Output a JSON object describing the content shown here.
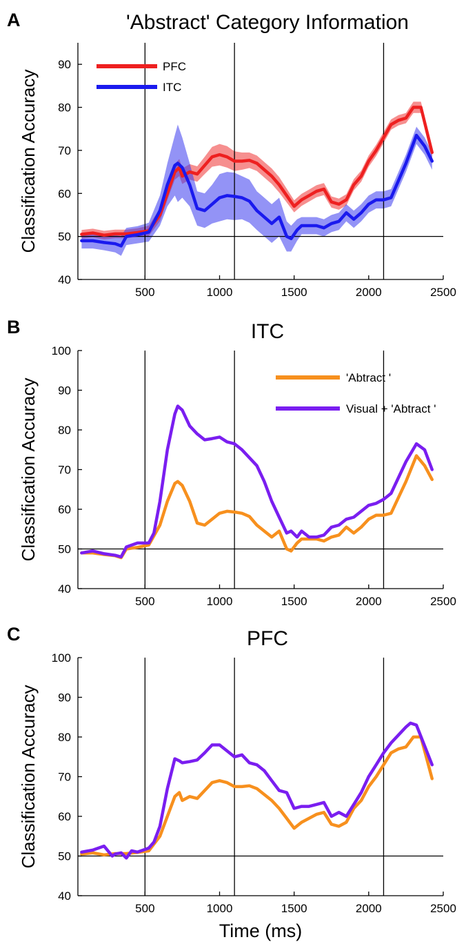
{
  "x_axis_label": "Time (ms)",
  "chart_data": [
    {
      "panel_label": "A",
      "type": "line",
      "title": "'Abstract' Category Information",
      "ylabel": "Classification Accuracy",
      "xlabel": "",
      "xlim": [
        50,
        2500
      ],
      "ylim": [
        40,
        95
      ],
      "xticks": [
        500,
        1000,
        1500,
        2000,
        2500
      ],
      "yticks": [
        40,
        50,
        60,
        70,
        80,
        90
      ],
      "reference_y": 50,
      "event_lines_x": [
        500,
        1100,
        2100
      ],
      "legend_position": "top-left",
      "grid": false,
      "series": [
        {
          "name": "PFC",
          "color": "#ee2020",
          "band_color": "#ee3333",
          "x": [
            75,
            150,
            225,
            300,
            375,
            450,
            525,
            600,
            650,
            700,
            730,
            750,
            800,
            850,
            900,
            950,
            1000,
            1050,
            1100,
            1150,
            1200,
            1250,
            1300,
            1350,
            1400,
            1450,
            1500,
            1550,
            1600,
            1650,
            1700,
            1750,
            1800,
            1850,
            1900,
            1950,
            2000,
            2050,
            2100,
            2150,
            2200,
            2250,
            2300,
            2350,
            2425
          ],
          "y": [
            50.5,
            50.8,
            50.3,
            50.6,
            50.6,
            50.9,
            51.3,
            55,
            60,
            65,
            66,
            64,
            65,
            64.5,
            66.5,
            68.5,
            69,
            68.5,
            67.5,
            67.5,
            67.7,
            67,
            65.5,
            64,
            62,
            59.5,
            57,
            58.5,
            59.5,
            60.5,
            61,
            58,
            57.5,
            58.5,
            62,
            64,
            67.5,
            70,
            73,
            76,
            77,
            77.5,
            80,
            80,
            69.5
          ],
          "band": [
            1,
            1,
            1,
            1,
            1,
            1,
            1.2,
            1.5,
            1.5,
            1.8,
            2,
            1.8,
            1.8,
            1.8,
            2,
            2.3,
            2.5,
            2.5,
            2.3,
            2,
            1.8,
            1.8,
            1.8,
            1.8,
            1.8,
            1.6,
            1.4,
            1.4,
            1.4,
            1.4,
            1.4,
            1.3,
            1.3,
            1.3,
            1.3,
            1.3,
            1.3,
            1.3,
            1.3,
            1.2,
            1.2,
            1.2,
            1.3,
            1.3,
            1.3
          ]
        },
        {
          "name": "ITC",
          "color": "#1a1aee",
          "band_color": "#3a3aee",
          "x": [
            75,
            150,
            225,
            300,
            340,
            375,
            450,
            525,
            600,
            650,
            700,
            720,
            750,
            800,
            850,
            900,
            950,
            1000,
            1050,
            1100,
            1150,
            1200,
            1250,
            1300,
            1350,
            1400,
            1450,
            1480,
            1520,
            1550,
            1600,
            1650,
            1700,
            1750,
            1800,
            1850,
            1900,
            1950,
            2000,
            2050,
            2100,
            2150,
            2200,
            2250,
            2320,
            2375,
            2425
          ],
          "y": [
            49,
            49,
            48.6,
            48.3,
            47.8,
            50,
            50.4,
            51,
            56,
            62,
            66.5,
            67,
            66,
            62,
            56.5,
            56,
            57.5,
            59,
            59.5,
            59.3,
            59,
            58.2,
            56,
            54.5,
            53,
            54.5,
            50,
            49.5,
            51.5,
            52.5,
            52.5,
            52.5,
            52,
            53,
            53.5,
            55.5,
            54,
            55.5,
            57.5,
            58.5,
            58.5,
            59,
            63,
            67,
            73.5,
            71,
            67.5
          ],
          "band": [
            1.8,
            1.8,
            1.8,
            2,
            2.3,
            2,
            2,
            2.2,
            3.5,
            5,
            7,
            9,
            7,
            5,
            4,
            4,
            4.5,
            5.5,
            5.5,
            5.5,
            5,
            5,
            4.5,
            4.5,
            4.5,
            4.5,
            3.5,
            3,
            2.5,
            2,
            2,
            2,
            2,
            2,
            2,
            2,
            2,
            2,
            2,
            2,
            2,
            2,
            2,
            2,
            2,
            2,
            2
          ]
        }
      ]
    },
    {
      "panel_label": "B",
      "type": "line",
      "title": "ITC",
      "ylabel": "Classification Accuracy",
      "xlabel": "",
      "xlim": [
        50,
        2500
      ],
      "ylim": [
        40,
        100
      ],
      "xticks": [
        500,
        1000,
        1500,
        2000,
        2500
      ],
      "yticks": [
        40,
        50,
        60,
        70,
        80,
        90,
        100
      ],
      "reference_y": 50,
      "event_lines_x": [
        500,
        1100,
        2100
      ],
      "legend_position": "top-right",
      "grid": false,
      "series": [
        {
          "name": "'Abtract '",
          "color": "#f7901e",
          "x": [
            75,
            150,
            225,
            300,
            340,
            375,
            450,
            525,
            600,
            650,
            700,
            720,
            750,
            800,
            850,
            900,
            950,
            1000,
            1050,
            1100,
            1150,
            1200,
            1250,
            1300,
            1350,
            1400,
            1450,
            1480,
            1520,
            1550,
            1600,
            1650,
            1700,
            1750,
            1800,
            1850,
            1900,
            1950,
            2000,
            2050,
            2100,
            2150,
            2200,
            2250,
            2320,
            2375,
            2425
          ],
          "y": [
            49,
            49,
            48.6,
            48.3,
            47.8,
            50,
            50.4,
            51,
            56,
            62,
            66.5,
            67,
            66,
            62,
            56.5,
            56,
            57.5,
            59,
            59.5,
            59.3,
            59,
            58.2,
            56,
            54.5,
            53,
            54.5,
            50,
            49.5,
            51.5,
            52.5,
            52.5,
            52.5,
            52,
            53,
            53.5,
            55.5,
            54,
            55.5,
            57.5,
            58.5,
            58.5,
            59,
            63,
            67,
            73.5,
            71,
            67.5
          ]
        },
        {
          "name": "Visual + 'Abtract '",
          "color": "#7a1ef0",
          "x": [
            75,
            150,
            225,
            300,
            340,
            375,
            450,
            525,
            560,
            600,
            650,
            700,
            720,
            750,
            800,
            850,
            900,
            950,
            1000,
            1050,
            1100,
            1150,
            1200,
            1250,
            1300,
            1350,
            1400,
            1450,
            1480,
            1520,
            1550,
            1600,
            1650,
            1700,
            1750,
            1800,
            1850,
            1900,
            1950,
            2000,
            2050,
            2100,
            2150,
            2200,
            2250,
            2320,
            2375,
            2425
          ],
          "y": [
            49,
            49.5,
            48.8,
            48.4,
            48,
            50.5,
            51.5,
            51.5,
            54,
            62,
            75,
            84,
            86,
            85,
            81,
            79,
            77.5,
            77.8,
            78.2,
            77,
            76.5,
            75,
            73,
            71,
            67,
            62,
            58,
            54,
            54.5,
            53,
            54.5,
            53,
            53,
            53.5,
            55.5,
            56,
            57.5,
            58,
            59.5,
            61,
            61.5,
            62.5,
            64,
            68,
            72,
            76.5,
            75,
            70
          ]
        }
      ]
    },
    {
      "panel_label": "C",
      "type": "line",
      "title": "PFC",
      "ylabel": "Classification Accuracy",
      "xlabel": "Time (ms)",
      "xlim": [
        50,
        2500
      ],
      "ylim": [
        40,
        100
      ],
      "xticks": [
        500,
        1000,
        1500,
        2000,
        2500
      ],
      "yticks": [
        40,
        50,
        60,
        70,
        80,
        90,
        100
      ],
      "reference_y": 50,
      "event_lines_x": [
        500,
        1100,
        2100
      ],
      "legend_position": "none",
      "grid": false,
      "series": [
        {
          "color": "#f7901e",
          "x": [
            75,
            150,
            225,
            300,
            375,
            450,
            525,
            600,
            650,
            700,
            730,
            750,
            800,
            850,
            900,
            950,
            1000,
            1050,
            1100,
            1150,
            1200,
            1250,
            1300,
            1350,
            1400,
            1450,
            1500,
            1550,
            1600,
            1650,
            1700,
            1750,
            1800,
            1850,
            1900,
            1950,
            2000,
            2050,
            2100,
            2150,
            2200,
            2250,
            2300,
            2350,
            2425
          ],
          "y": [
            50.5,
            50.8,
            50.3,
            50.6,
            50.6,
            50.9,
            51.3,
            55,
            60,
            65,
            66,
            64,
            65,
            64.5,
            66.5,
            68.5,
            69,
            68.5,
            67.5,
            67.5,
            67.7,
            67,
            65.5,
            64,
            62,
            59.5,
            57,
            58.5,
            59.5,
            60.5,
            61,
            58,
            57.5,
            58.5,
            62,
            64,
            67.5,
            70,
            73,
            76,
            77,
            77.5,
            80,
            80,
            69.5
          ]
        },
        {
          "color": "#7a1ef0",
          "x": [
            75,
            150,
            225,
            280,
            300,
            340,
            375,
            410,
            450,
            525,
            560,
            600,
            650,
            700,
            730,
            750,
            800,
            850,
            900,
            950,
            1000,
            1050,
            1100,
            1150,
            1200,
            1250,
            1300,
            1350,
            1400,
            1450,
            1500,
            1550,
            1600,
            1650,
            1700,
            1750,
            1800,
            1850,
            1900,
            1950,
            2000,
            2050,
            2100,
            2150,
            2200,
            2250,
            2280,
            2320,
            2425
          ],
          "y": [
            51,
            51.5,
            52.5,
            50,
            50.5,
            50.8,
            49.5,
            51.3,
            51,
            52,
            53.5,
            57.5,
            67,
            74.5,
            74,
            73.5,
            73.8,
            74.2,
            76,
            78,
            78,
            76.5,
            75,
            75.5,
            73.5,
            73,
            71.5,
            69,
            66.5,
            66,
            62,
            62.5,
            62.5,
            63,
            63.5,
            60,
            61,
            60,
            63,
            66,
            70,
            73,
            76,
            78.5,
            80.5,
            82.5,
            83.5,
            83,
            73
          ]
        }
      ]
    }
  ]
}
